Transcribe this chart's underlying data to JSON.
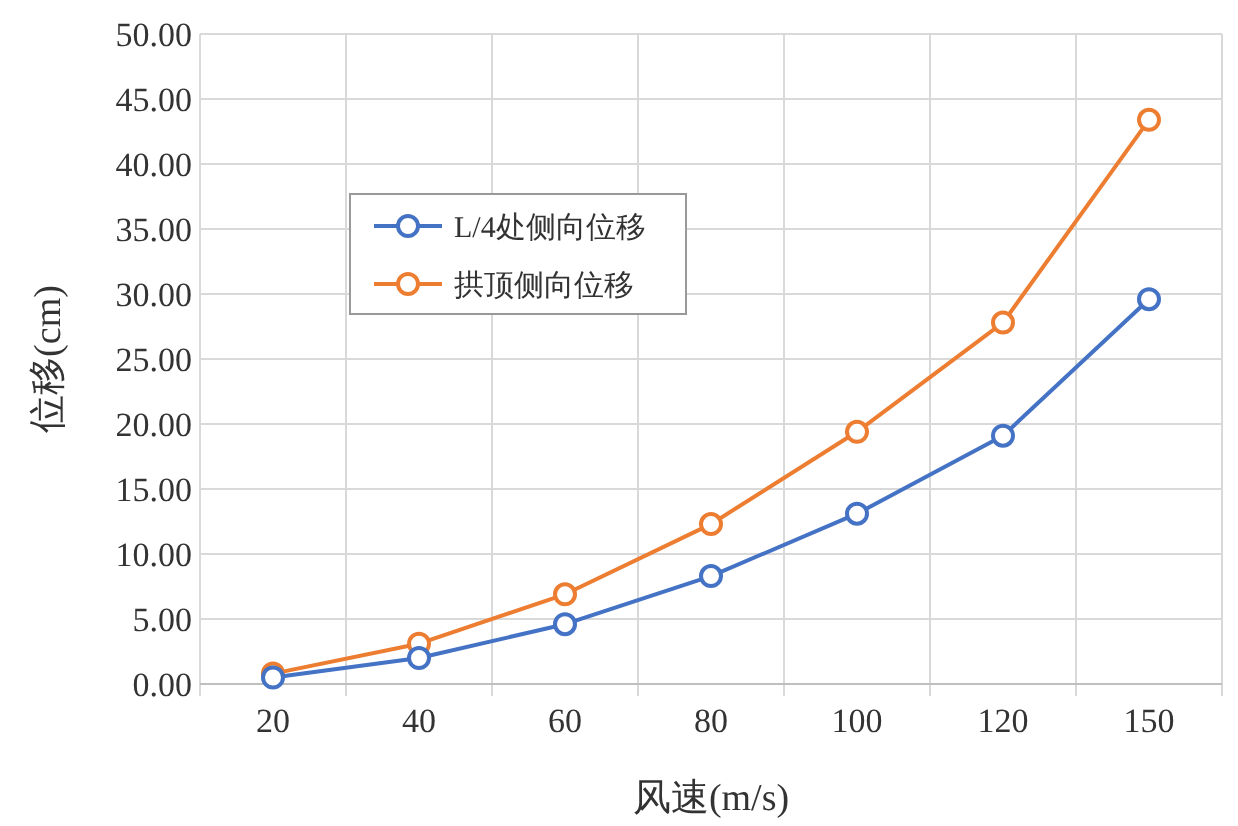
{
  "chart_data": {
    "type": "line",
    "xlabel": "风速(m/s)",
    "ylabel": "位移(cm)",
    "categories": [
      "20",
      "40",
      "60",
      "80",
      "100",
      "120",
      "150"
    ],
    "series": [
      {
        "name": "L/4处侧向位移",
        "color": "#4472c4",
        "values": [
          0.5,
          2.0,
          4.6,
          8.3,
          13.1,
          19.1,
          29.6
        ]
      },
      {
        "name": "拱顶侧向位移",
        "color": "#ed7d31",
        "values": [
          0.8,
          3.1,
          6.9,
          12.3,
          19.4,
          27.8,
          43.4
        ]
      }
    ],
    "ylim": [
      0,
      50
    ],
    "yticks": [
      {
        "value": 0,
        "label": "0.00"
      },
      {
        "value": 5,
        "label": "5.00"
      },
      {
        "value": 10,
        "label": "10.00"
      },
      {
        "value": 15,
        "label": "15.00"
      },
      {
        "value": 20,
        "label": "20.00"
      },
      {
        "value": 25,
        "label": "25.00"
      },
      {
        "value": 30,
        "label": "30.00"
      },
      {
        "value": 35,
        "label": "35.00"
      },
      {
        "value": 40,
        "label": "40.00"
      },
      {
        "value": 45,
        "label": "45.00"
      },
      {
        "value": 50,
        "label": "50.00"
      }
    ],
    "grid": true,
    "legend": "top left",
    "marker": "circle",
    "line_style": "solid"
  }
}
